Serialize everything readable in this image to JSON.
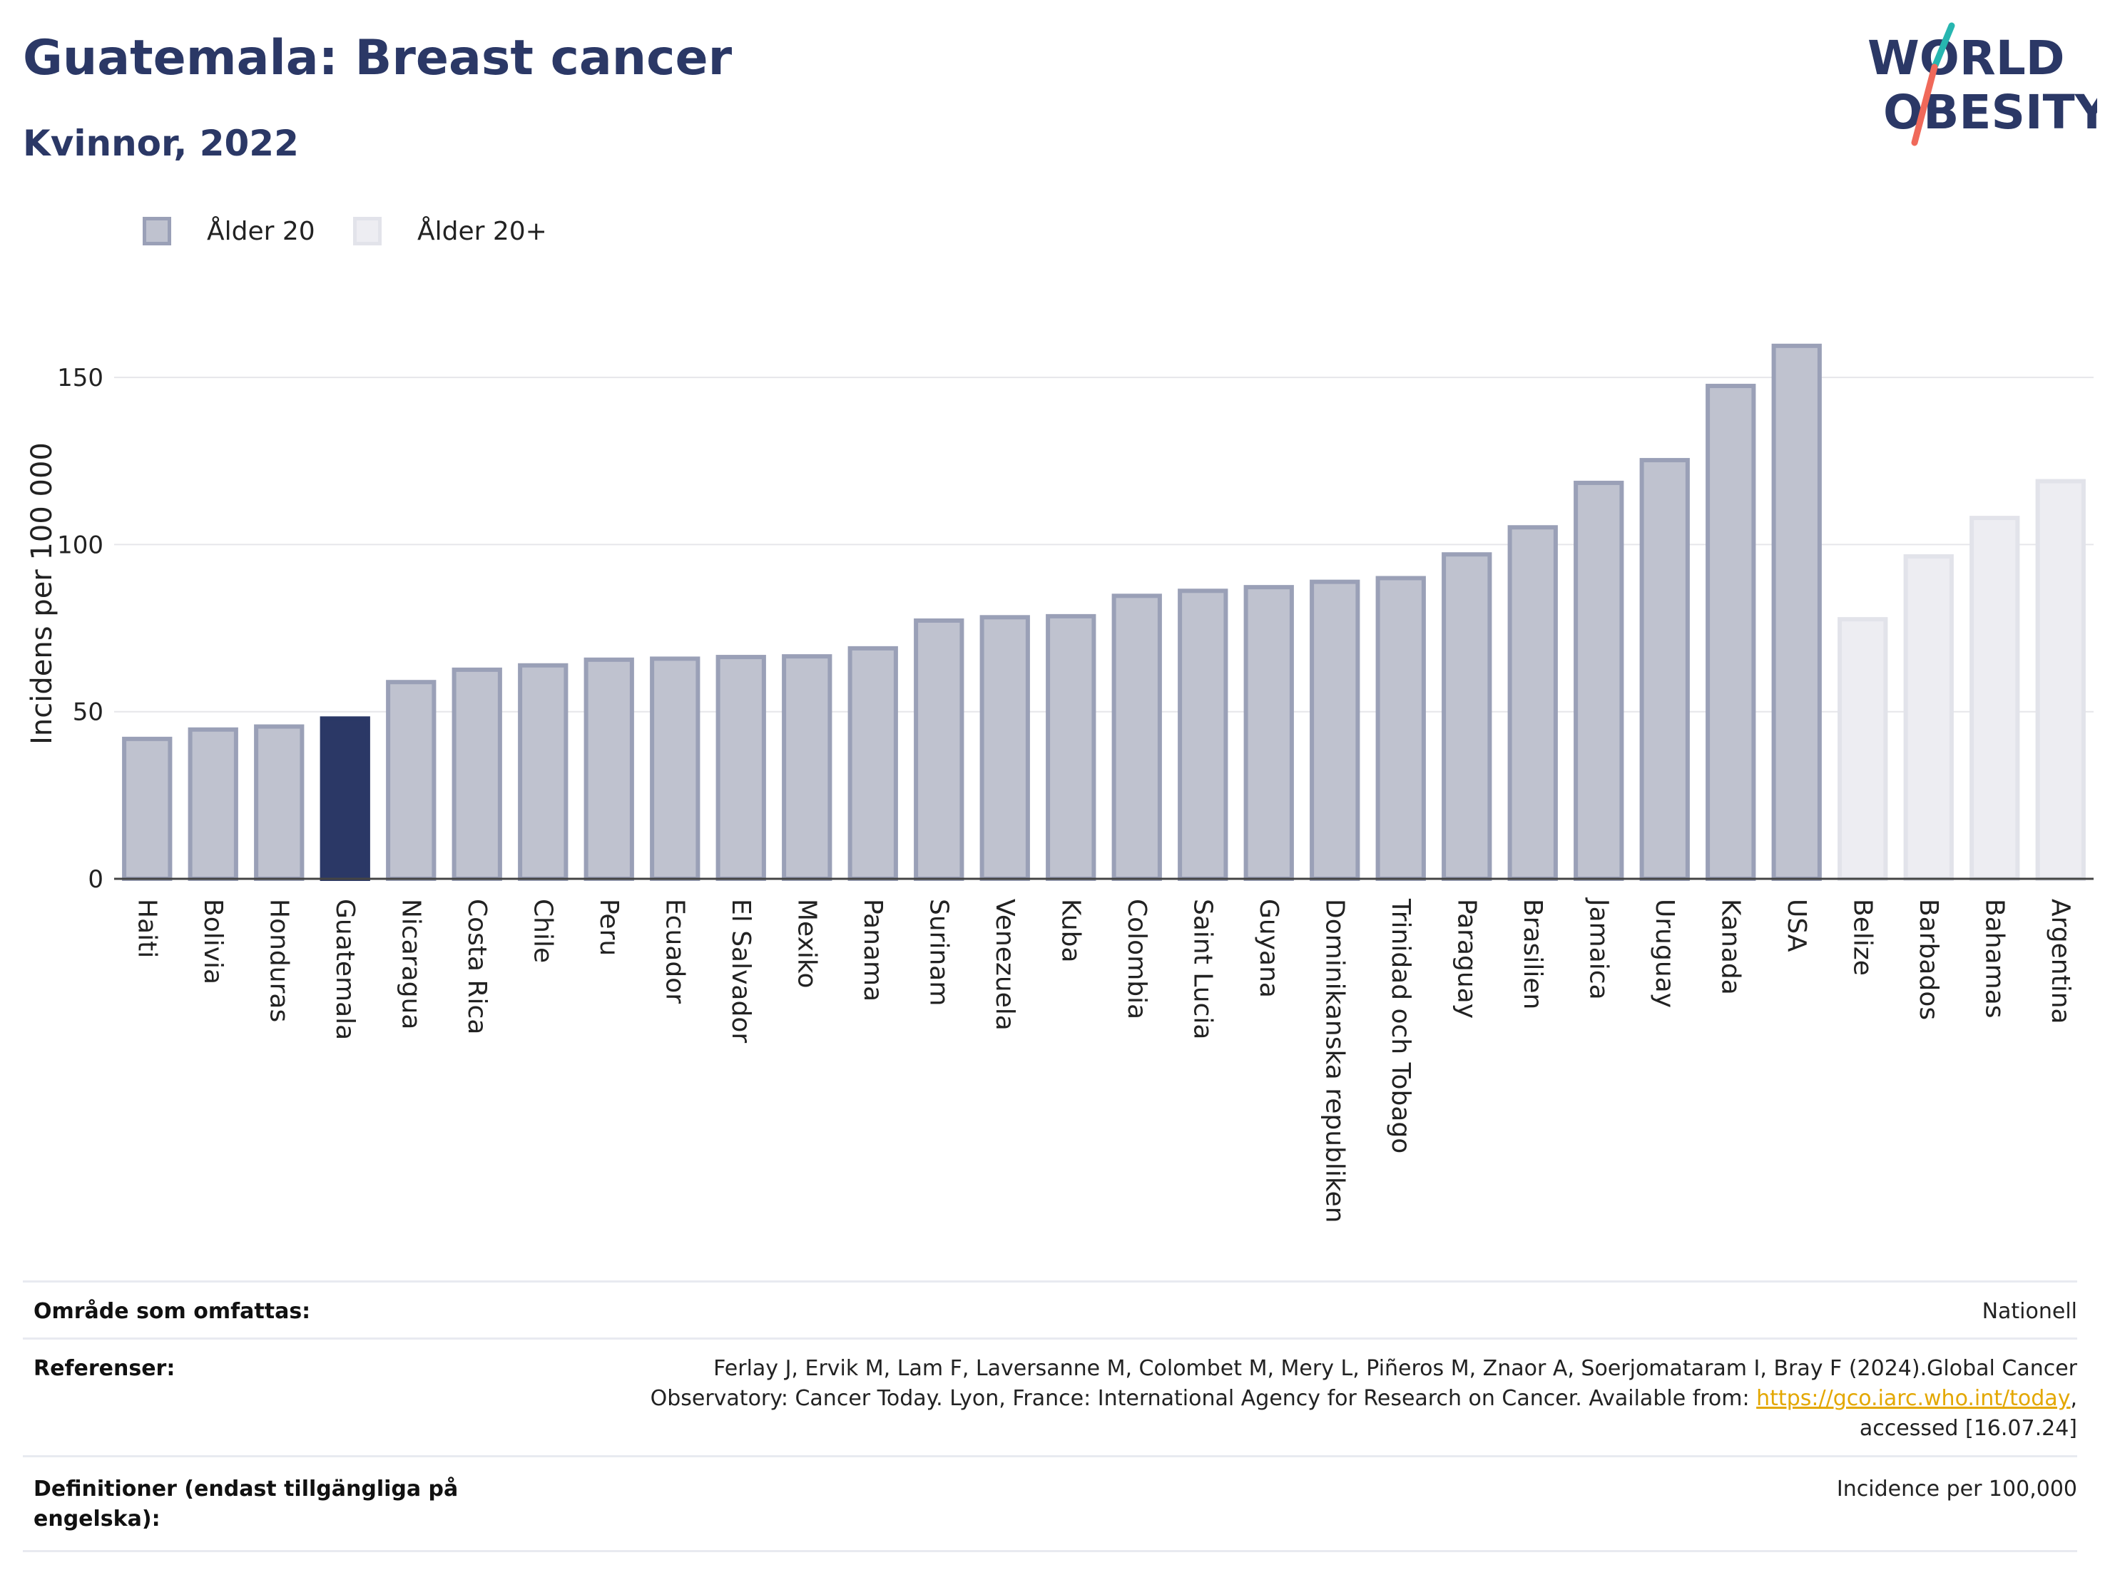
{
  "header": {
    "title": "Guatemala: Breast cancer",
    "subtitle": "Kvinnor, 2022"
  },
  "logo": {
    "line1": "WORLD",
    "line2": "OBESITY",
    "colors": {
      "text": "#2b3866",
      "stroke_top": "#27b6b0",
      "stroke_bottom": "#f0695a"
    }
  },
  "legend": {
    "items": [
      {
        "label": "Ålder 20",
        "fill": "#bfc2cf",
        "stroke": "#9aa0b7"
      },
      {
        "label": "Ålder 20+",
        "fill": "#ededf2",
        "stroke": "#e2e3ea"
      }
    ]
  },
  "chart_data": {
    "type": "bar",
    "ylabel": "Incidens per 100 000",
    "xlabel": "",
    "ylim": [
      0,
      175
    ],
    "yticks": [
      0,
      50,
      100,
      150
    ],
    "grid": true,
    "legend_position": "top-left",
    "categories": [
      "Haiti",
      "Bolivia",
      "Honduras",
      "Guatemala",
      "Nicaragua",
      "Costa Rica",
      "Chile",
      "Peru",
      "Ecuador",
      "El Salvador",
      "Mexiko",
      "Panama",
      "Surinam",
      "Venezuela",
      "Kuba",
      "Colombia",
      "Saint Lucia",
      "Guyana",
      "Dominikanska republiken",
      "Trinidad och Tobago",
      "Paraguay",
      "Brasilien",
      "Jamaica",
      "Uruguay",
      "Kanada",
      "USA",
      "Belize",
      "Barbados",
      "Bahamas",
      "Argentina"
    ],
    "values": [
      42.5,
      45.3,
      46.2,
      48.6,
      59.5,
      63.2,
      64.5,
      66.2,
      66.5,
      67.0,
      67.2,
      69.6,
      77.9,
      78.9,
      79.2,
      85.3,
      86.8,
      87.9,
      89.5,
      90.6,
      97.7,
      105.8,
      119.1,
      125.9,
      148.1,
      160.1,
      78.3,
      97.1,
      108.6,
      119.6
    ],
    "groups": [
      "Ålder 20",
      "Ålder 20",
      "Ålder 20",
      "Ålder 20",
      "Ålder 20",
      "Ålder 20",
      "Ålder 20",
      "Ålder 20",
      "Ålder 20",
      "Ålder 20",
      "Ålder 20",
      "Ålder 20",
      "Ålder 20",
      "Ålder 20",
      "Ålder 20",
      "Ålder 20",
      "Ålder 20",
      "Ålder 20",
      "Ålder 20",
      "Ålder 20",
      "Ålder 20",
      "Ålder 20",
      "Ålder 20",
      "Ålder 20",
      "Ålder 20",
      "Ålder 20",
      "Ålder 20+",
      "Ålder 20+",
      "Ålder 20+",
      "Ålder 20+"
    ],
    "highlight": "Guatemala",
    "colors": {
      "age20_fill": "#bfc2cf",
      "age20_stroke": "#9aa0b7",
      "age20plus_fill": "#ededf2",
      "age20plus_stroke": "#e2e3ea",
      "highlight_fill": "#2b3866",
      "highlight_stroke": "#2b3866",
      "grid": "#e6e6ea",
      "axis": "#444444"
    }
  },
  "meta": {
    "area_label": "Område som omfattas:",
    "area_value": "Nationell",
    "ref_label": "Referenser:",
    "ref_line1": "Ferlay J, Ervik M, Lam F, Laversanne M, Colombet M, Mery L, Piñeros M, Znaor A, Soerjomataram I, Bray F (2024).Global Cancer",
    "ref_line2_pre": "Observatory: Cancer Today. Lyon, France: International Agency for Research on Cancer. Available from: ",
    "ref_link": "https://gco.iarc.who.int/today",
    "ref_line2_post": ",",
    "ref_line3": "accessed [16.07.24]",
    "def_label_line1": "Definitioner (endast tillgängliga på",
    "def_label_line2": "engelska):",
    "def_value": "Incidence per 100,000",
    "link_color": "#e3a700"
  }
}
